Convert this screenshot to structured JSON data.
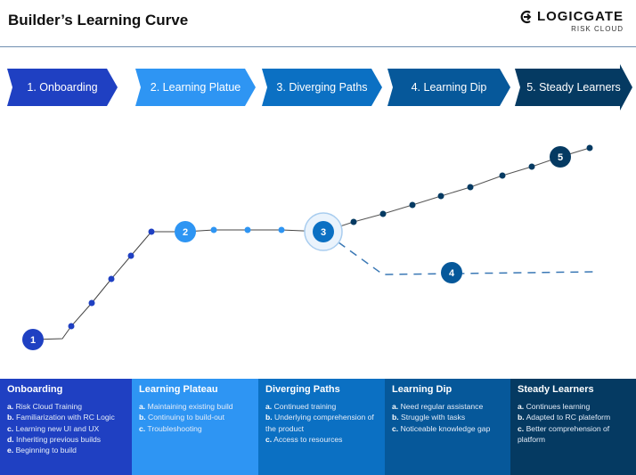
{
  "title": "Builder’s Learning Curve",
  "logo": {
    "name": "LOGICGATE",
    "sub": "RISK CLOUD"
  },
  "stages": [
    {
      "label": "1. Onboarding",
      "color": "#1f40c2"
    },
    {
      "label": "2. Learning Platue",
      "color": "#2e95f3"
    },
    {
      "label": "3. Diverging Paths",
      "color": "#0b70c3"
    },
    {
      "label": "4. Learning Dip",
      "color": "#06589a"
    },
    {
      "label": "5. Steady Learners",
      "color": "#053a62"
    }
  ],
  "markers": [
    "1",
    "2",
    "3",
    "4",
    "5"
  ],
  "panels": [
    {
      "title": "Onboarding",
      "color": "#1f40c2",
      "items": [
        {
          "k": "a.",
          "t": "Risk Cloud Training"
        },
        {
          "k": "b.",
          "t": "Familiarization with RC Logic"
        },
        {
          "k": "c.",
          "t": "Learning new UI and UX"
        },
        {
          "k": "d.",
          "t": "Inheriting previous builds"
        },
        {
          "k": "e.",
          "t": "Beginning to build"
        }
      ]
    },
    {
      "title": "Learning Plateau",
      "color": "#2e95f3",
      "items": [
        {
          "k": "a.",
          "t": "Maintaining existing build"
        },
        {
          "k": "b.",
          "t": "Continuing to build-out"
        },
        {
          "k": "c.",
          "t": "Troubleshooting"
        }
      ]
    },
    {
      "title": "Diverging Paths",
      "color": "#0b70c3",
      "items": [
        {
          "k": "a.",
          "t": "Continued training"
        },
        {
          "k": "b.",
          "t": "Underlying comprehension of the product"
        },
        {
          "k": "c.",
          "t": "Access to resources"
        }
      ]
    },
    {
      "title": "Learning Dip",
      "color": "#06589a",
      "items": [
        {
          "k": "a.",
          "t": "Need regular assistance"
        },
        {
          "k": "b.",
          "t": "Struggle with tasks"
        },
        {
          "k": "c.",
          "t": "Noticeable knowledge gap"
        }
      ]
    },
    {
      "title": "Steady Learners",
      "color": "#053a62",
      "items": [
        {
          "k": "a.",
          "t": "Continues learning"
        },
        {
          "k": "b.",
          "t": "Adapted to RC plateform"
        },
        {
          "k": "c.",
          "t": "Better comprehension of platform"
        }
      ]
    }
  ]
}
